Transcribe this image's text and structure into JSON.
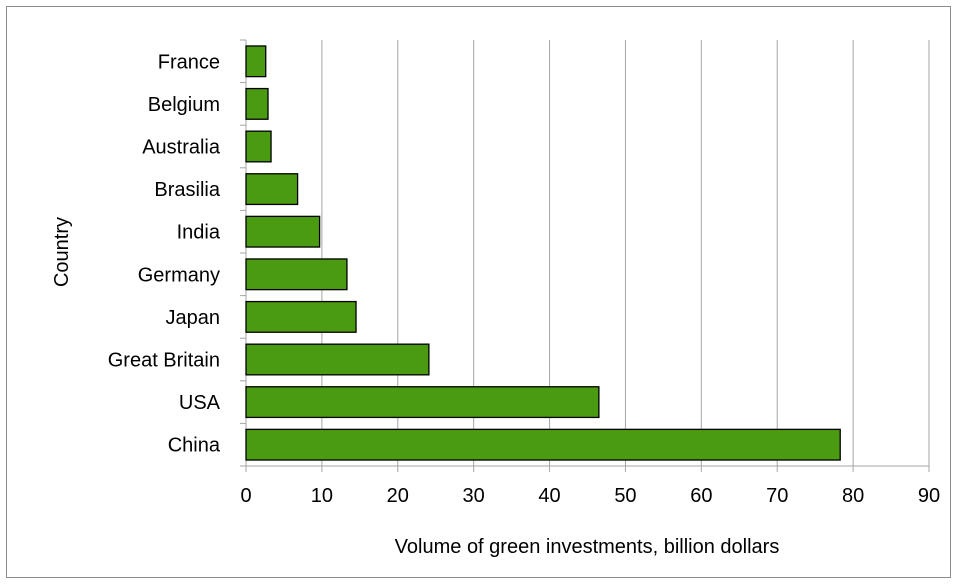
{
  "chart_data": {
    "type": "bar",
    "orientation": "horizontal",
    "title": "",
    "xlabel": "Volume of green investments, billion dollars",
    "ylabel": "Country",
    "categories": [
      "France",
      "Belgium",
      "Australia",
      "Brasilia",
      "India",
      "Germany",
      "Japan",
      "Great Britain",
      "USA",
      "China"
    ],
    "values": [
      2.6,
      2.9,
      3.3,
      6.8,
      9.7,
      13.3,
      14.5,
      24.1,
      46.5,
      78.3
    ],
    "xlim": [
      0,
      90
    ],
    "xticks": [
      "0",
      "10",
      "20",
      "30",
      "40",
      "50",
      "60",
      "70",
      "80",
      "90"
    ],
    "grid": "vertical",
    "legend": "none",
    "bar_color": "#4a9a12",
    "bar_edge_color": "#000000",
    "grid_color": "#a6a6a6",
    "axis_color": "#a6a6a6"
  }
}
